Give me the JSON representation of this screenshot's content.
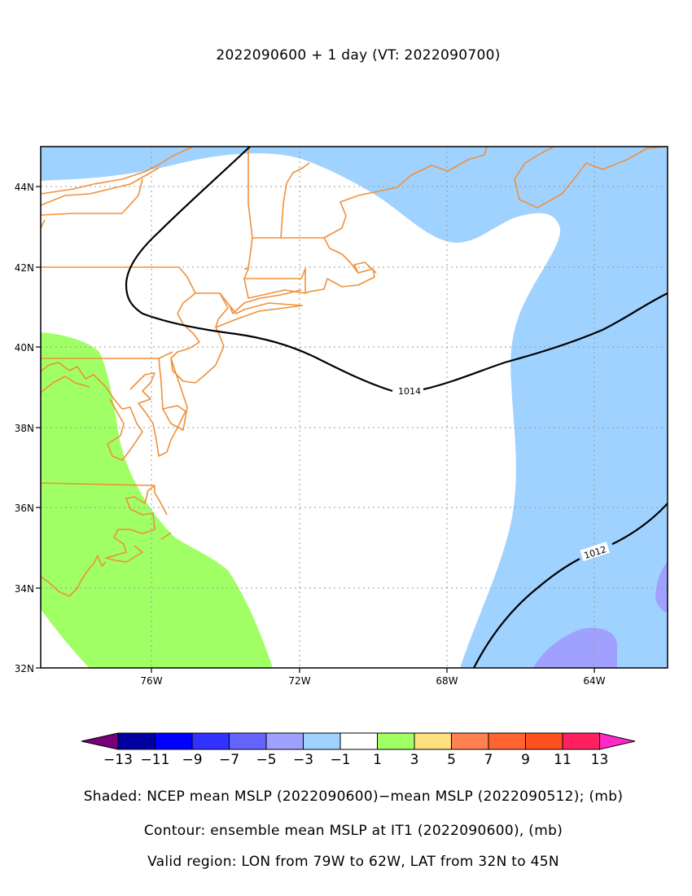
{
  "title": "2022090600 + 1 day (VT: 2022090700)",
  "axes": {
    "lat_labels": [
      "44N",
      "42N",
      "40N",
      "38N",
      "36N",
      "34N",
      "32N"
    ],
    "lon_labels": [
      "76W",
      "72W",
      "68W",
      "64W"
    ]
  },
  "contours": {
    "label_1014": "1014",
    "label_1012": "1012"
  },
  "colorbar": {
    "labels": [
      "−13",
      "−11",
      "−9",
      "−7",
      "−5",
      "−3",
      "−1",
      "1",
      "3",
      "5",
      "7",
      "9",
      "11",
      "13"
    ],
    "colors": [
      "#0000a0",
      "#0000ff",
      "#3232ff",
      "#6464ff",
      "#a0a0ff",
      "#a0d2ff",
      "#ffffff",
      "#a0ff64",
      "#ffe080",
      "#ff8050",
      "#ff6432",
      "#ff5020",
      "#ff2060"
    ],
    "low_color": "#780078",
    "high_color": "#ff28c8"
  },
  "captions": {
    "shaded": "Shaded: NCEP mean MSLP (2022090600)−mean MSLP (2022090512); (mb)",
    "contour": "Contour: ensemble mean MSLP at IT1 (2022090600), (mb)",
    "region": "Valid region: LON from 79W to 62W, LAT from 32N to 45N"
  }
}
